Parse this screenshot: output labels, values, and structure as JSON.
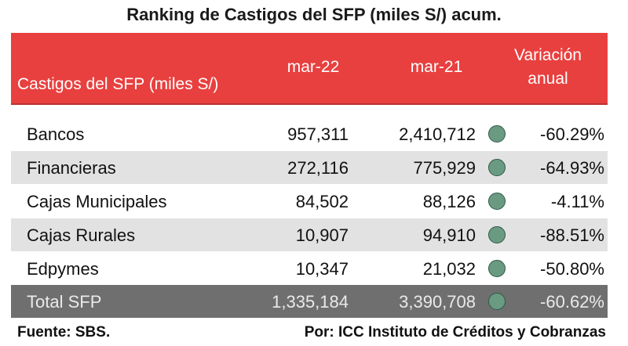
{
  "title": "Ranking de Castigos del SFP (miles S/) acum.",
  "header": {
    "label": "Castigos del SFP (miles S/)",
    "col1": "mar-22",
    "col2": "mar-21",
    "variation_line1": "Variación",
    "variation_line2": "anual"
  },
  "rows": [
    {
      "name": "Bancos",
      "mar22": "957,311",
      "mar21": "2,410,712",
      "variation": "-60.29%"
    },
    {
      "name": "Financieras",
      "mar22": "272,116",
      "mar21": "775,929",
      "variation": "-64.93%"
    },
    {
      "name": "Cajas Municipales",
      "mar22": "84,502",
      "mar21": "88,126",
      "variation": "-4.11%"
    },
    {
      "name": "Cajas Rurales",
      "mar22": "10,907",
      "mar21": "94,910",
      "variation": "-88.51%"
    },
    {
      "name": "Edpymes",
      "mar22": "10,347",
      "mar21": "21,032",
      "variation": "-50.80%"
    }
  ],
  "total": {
    "name": "Total SFP",
    "mar22": "1,335,184",
    "mar21": "3,390,708",
    "variation": "-60.62%"
  },
  "indicator_icon": "green-circle-icon",
  "colors": {
    "header": "#e8403f",
    "indicator": "#6b9a82",
    "total_row": "#6f6f6f",
    "alt_row": "#e2e2e2"
  },
  "footer": {
    "source": "Fuente: SBS.",
    "author": "Por: ICC Instituto de Créditos y Cobranzas"
  }
}
